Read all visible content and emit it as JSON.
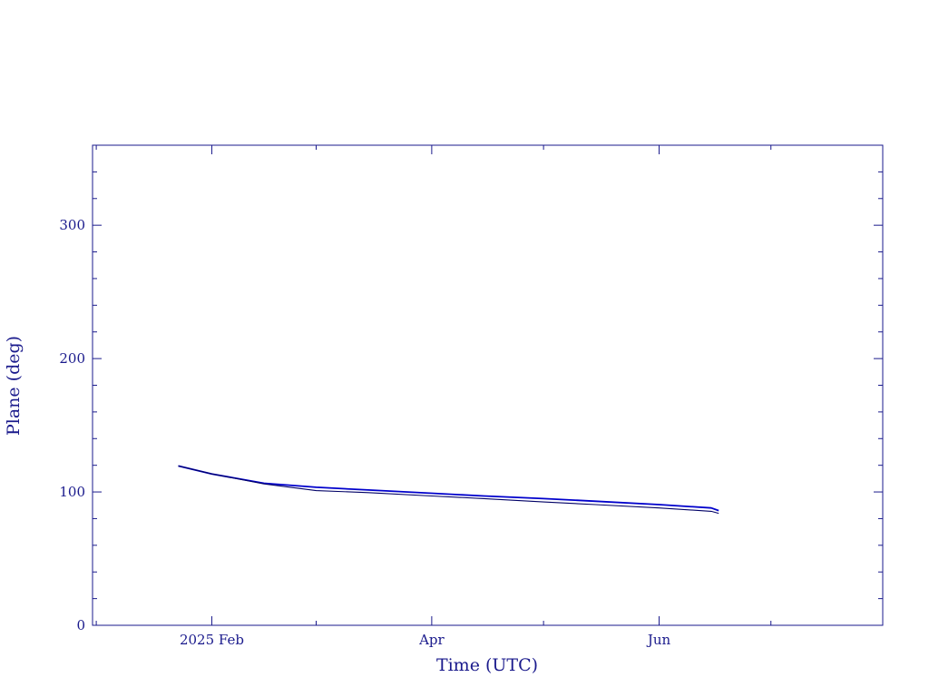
{
  "chart_data": {
    "type": "line",
    "title": "",
    "xlabel": "Time (UTC)",
    "ylabel": "Plane (deg)",
    "xlim": [
      "2024-12-31",
      "2025-07-31"
    ],
    "ylim": [
      0,
      360
    ],
    "x_ticks": [
      {
        "value": "2025-02-01",
        "label": "2025 Feb"
      },
      {
        "value": "2025-04-01",
        "label": "Apr"
      },
      {
        "value": "2025-06-01",
        "label": "Jun"
      }
    ],
    "x_minor_ticks": [
      "2025-01-01",
      "2025-03-01",
      "2025-05-01",
      "2025-07-01"
    ],
    "y_ticks": [
      0,
      100,
      200,
      300
    ],
    "y_minor_step": 20,
    "grid": false,
    "colors": {
      "axis": "#1a1a8c",
      "series_primary": "#0000cc",
      "series_secondary": "#000066"
    },
    "series": [
      {
        "x": [
          "2025-01-23",
          "2025-02-01",
          "2025-02-15",
          "2025-03-01",
          "2025-03-15",
          "2025-04-01",
          "2025-04-15",
          "2025-05-01",
          "2025-05-15",
          "2025-06-01",
          "2025-06-15",
          "2025-06-17"
        ],
        "values": [
          119.5,
          113.5,
          106.5,
          103.5,
          101.5,
          99.0,
          97.0,
          95.0,
          93.0,
          90.5,
          88.0,
          86.0
        ]
      },
      {
        "x": [
          "2025-01-23",
          "2025-02-01",
          "2025-02-15",
          "2025-03-01",
          "2025-03-15",
          "2025-04-01",
          "2025-04-15",
          "2025-05-01",
          "2025-05-15",
          "2025-06-01",
          "2025-06-15",
          "2025-06-17"
        ],
        "values": [
          119.5,
          113.5,
          106.0,
          101.0,
          99.5,
          97.0,
          95.0,
          92.5,
          90.5,
          88.0,
          85.5,
          84.0
        ]
      }
    ]
  }
}
